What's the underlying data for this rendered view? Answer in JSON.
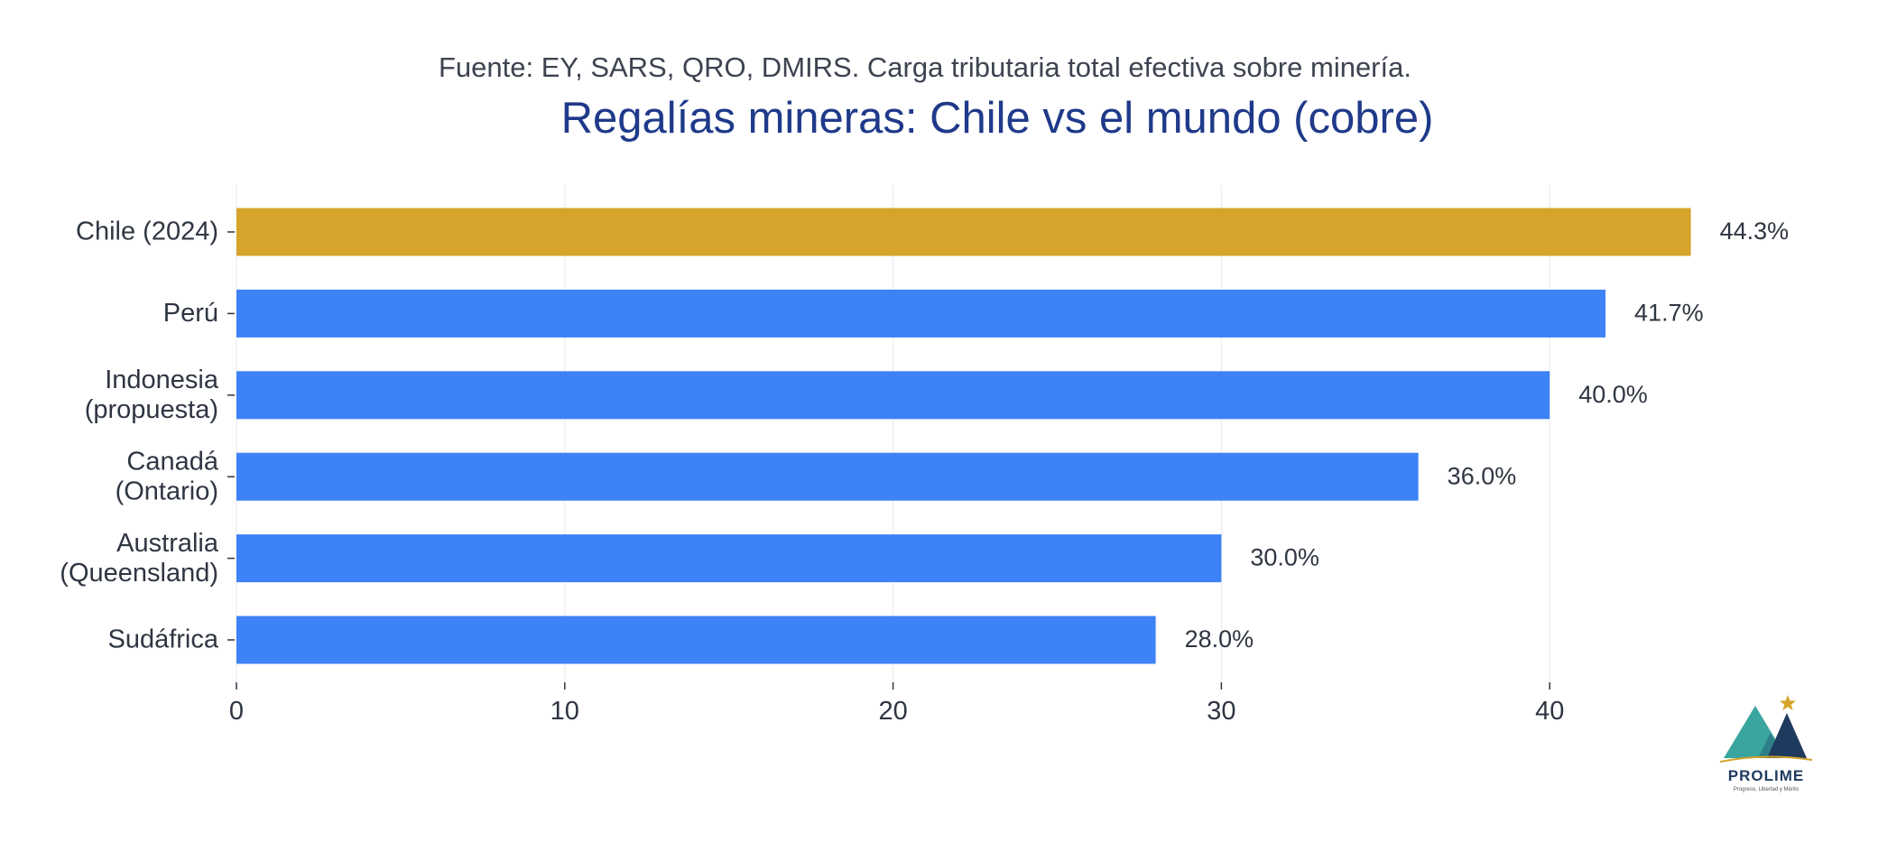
{
  "chart_data": {
    "type": "bar",
    "orientation": "horizontal",
    "subtitle": "Fuente: EY, SARS, QRO, DMIRS. Carga tributaria total efectiva sobre minería.",
    "title": "Regalías mineras: Chile vs el mundo (cobre)",
    "categories": [
      [
        "Chile (2024)"
      ],
      [
        "Perú"
      ],
      [
        "Indonesia",
        "(propuesta)"
      ],
      [
        "Canadá",
        "(Ontario)"
      ],
      [
        "Australia",
        "(Queensland)"
      ],
      [
        "Sudáfrica"
      ]
    ],
    "values": [
      44.3,
      41.7,
      40.0,
      36.0,
      30.0,
      28.0
    ],
    "value_labels": [
      "44.3%",
      "41.7%",
      "40.0%",
      "36.0%",
      "30.0%",
      "28.0%"
    ],
    "colors": [
      "#d4a52a",
      "#3d82f6",
      "#3d82f6",
      "#3d82f6",
      "#3d82f6",
      "#3d82f6"
    ],
    "x_ticks": [
      0,
      10,
      20,
      30,
      40
    ],
    "xlim": [
      0,
      48.5
    ],
    "xlabel": "",
    "ylabel": "",
    "grid": "vertical"
  },
  "logo": {
    "name": "PROLIME",
    "tagline": "Progreso, Libertad y Mérito",
    "colors": {
      "teal": "#3aa59f",
      "navy": "#1f3a5f",
      "star": "#d4a52a"
    }
  }
}
